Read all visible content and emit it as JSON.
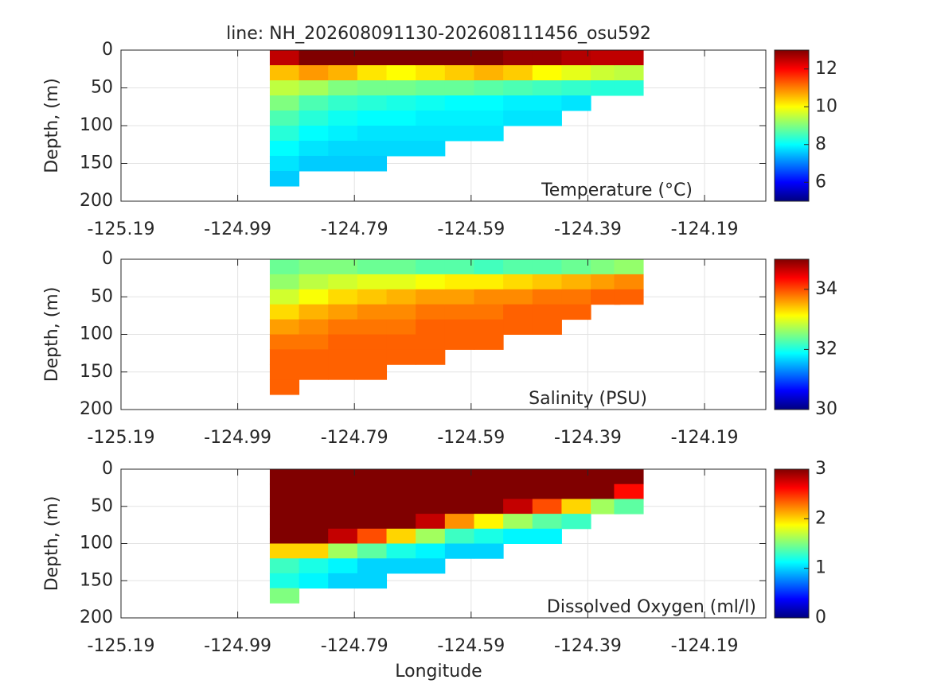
{
  "chart_data": [
    {
      "type": "section",
      "title": "line: NH_202608091130-202608111456_osu592",
      "label": "Temperature (°C)",
      "ylabel": "Depth, (m)",
      "x": [
        -124.91,
        -124.86,
        -124.81,
        -124.76,
        -124.71,
        -124.66,
        -124.61,
        -124.56,
        -124.51,
        -124.46,
        -124.41,
        -124.36,
        -124.32
      ],
      "depths": [
        0,
        20,
        40,
        60,
        80,
        100,
        120,
        140,
        160
      ],
      "values": [
        [
          12.5,
          10.5,
          9.5,
          9.0,
          8.6,
          8.3,
          8.0,
          7.8,
          7.6
        ],
        [
          13,
          10.8,
          9.3,
          8.6,
          8.3,
          8.0,
          7.8,
          7.6
        ],
        [
          13,
          10.6,
          9.0,
          8.4,
          8.1,
          7.9,
          7.7,
          7.6
        ],
        [
          13,
          10.2,
          8.9,
          8.3,
          8.0,
          7.8,
          7.7,
          7.6
        ],
        [
          13,
          10.0,
          8.9,
          8.2,
          8.0,
          7.8,
          7.7
        ],
        [
          13,
          10.2,
          8.8,
          8.1,
          7.9,
          7.8,
          7.7
        ],
        [
          13,
          10.4,
          8.8,
          8.0,
          7.9,
          7.8
        ],
        [
          13,
          10.6,
          8.7,
          8.0,
          7.9,
          7.8
        ],
        [
          12.8,
          10.4,
          8.6,
          7.9,
          7.8
        ],
        [
          12.8,
          10.0,
          8.5,
          7.9,
          7.8
        ],
        [
          12.6,
          9.8,
          8.4,
          7.8
        ],
        [
          12.5,
          9.6,
          8.3
        ],
        [
          12.5,
          9.5,
          8.3
        ]
      ],
      "xlim": [
        -125.19,
        -124.085
      ],
      "xticks": [
        -125.19,
        -124.99,
        -124.79,
        -124.59,
        -124.39,
        -124.19
      ],
      "ylim": [
        0,
        200
      ],
      "yticks": [
        0,
        50,
        100,
        150,
        200
      ],
      "yreverse": true,
      "grid": true,
      "colormap": "jet",
      "clim": [
        5,
        13
      ],
      "cticks": [
        6,
        8,
        10,
        12
      ]
    },
    {
      "type": "section",
      "label": "Salinity (PSU)",
      "ylabel": "Depth, (m)",
      "x": [
        -124.91,
        -124.86,
        -124.81,
        -124.76,
        -124.71,
        -124.66,
        -124.61,
        -124.56,
        -124.51,
        -124.46,
        -124.41,
        -124.36,
        -124.32
      ],
      "depths": [
        0,
        20,
        40,
        60,
        80,
        100,
        120,
        140,
        160
      ],
      "values": [
        [
          32.4,
          32.6,
          32.9,
          33.3,
          33.6,
          33.8,
          33.9,
          33.9,
          33.9
        ],
        [
          32.5,
          32.8,
          33.1,
          33.5,
          33.7,
          33.8,
          33.9,
          33.9
        ],
        [
          32.5,
          32.9,
          33.3,
          33.6,
          33.8,
          33.9,
          33.9,
          33.9
        ],
        [
          32.4,
          33.0,
          33.4,
          33.7,
          33.8,
          33.9,
          33.9,
          33.9
        ],
        [
          32.4,
          33.0,
          33.5,
          33.7,
          33.8,
          33.9,
          33.9
        ],
        [
          32.3,
          33.1,
          33.6,
          33.8,
          33.9,
          33.9,
          33.9
        ],
        [
          32.3,
          33.2,
          33.6,
          33.8,
          33.9,
          33.9
        ],
        [
          32.2,
          33.2,
          33.7,
          33.8,
          33.9,
          33.9
        ],
        [
          32.3,
          33.3,
          33.7,
          33.9,
          33.9
        ],
        [
          32.3,
          33.4,
          33.8,
          33.9,
          33.9
        ],
        [
          32.4,
          33.5,
          33.8,
          33.9
        ],
        [
          32.5,
          33.6,
          33.9
        ],
        [
          32.6,
          33.7,
          33.9
        ]
      ],
      "xlim": [
        -125.19,
        -124.085
      ],
      "xticks": [
        -125.19,
        -124.99,
        -124.79,
        -124.59,
        -124.39,
        -124.19
      ],
      "ylim": [
        0,
        200
      ],
      "yticks": [
        0,
        50,
        100,
        150,
        200
      ],
      "yreverse": true,
      "grid": true,
      "colormap": "jet",
      "clim": [
        30,
        35
      ],
      "cticks": [
        30,
        32,
        34
      ]
    },
    {
      "type": "section",
      "label": "Dissolved Oxygen (ml/l)",
      "ylabel": "Depth, (m)",
      "xlabel": "Longitude",
      "x": [
        -124.91,
        -124.86,
        -124.81,
        -124.76,
        -124.71,
        -124.66,
        -124.61,
        -124.56,
        -124.51,
        -124.46,
        -124.41,
        -124.36,
        -124.32
      ],
      "depths": [
        0,
        20,
        40,
        60,
        80,
        100,
        120,
        140,
        160
      ],
      "values": [
        [
          4.5,
          4.5,
          4.2,
          3.8,
          3.2,
          2.0,
          1.3,
          1.2,
          1.5
        ],
        [
          4.5,
          4.5,
          4.2,
          3.8,
          3.2,
          2.0,
          1.2,
          1.1
        ],
        [
          4.5,
          4.5,
          4.2,
          3.6,
          2.8,
          1.6,
          1.1,
          1.0
        ],
        [
          4.5,
          4.5,
          4.0,
          3.4,
          2.4,
          1.4,
          1.0,
          1.0
        ],
        [
          4.5,
          4.4,
          3.8,
          3.2,
          2.0,
          1.2,
          1.0
        ],
        [
          4.5,
          4.4,
          3.6,
          2.8,
          1.6,
          1.1,
          1.0
        ],
        [
          4.5,
          4.2,
          3.4,
          2.2,
          1.3,
          1.0
        ],
        [
          4.5,
          4.0,
          3.2,
          1.9,
          1.2,
          1.0
        ],
        [
          4.5,
          3.8,
          2.8,
          1.6,
          1.1
        ],
        [
          4.4,
          3.6,
          2.4,
          1.4,
          1.1
        ],
        [
          4.3,
          3.4,
          2.0,
          1.3
        ],
        [
          4.2,
          3.0,
          1.6
        ],
        [
          4.0,
          2.6,
          1.4
        ]
      ],
      "xlim": [
        -125.19,
        -124.085
      ],
      "xticks": [
        -125.19,
        -124.99,
        -124.79,
        -124.59,
        -124.39,
        -124.19
      ],
      "ylim": [
        0,
        200
      ],
      "yticks": [
        0,
        50,
        100,
        150,
        200
      ],
      "yreverse": true,
      "grid": true,
      "colormap": "jet",
      "clim": [
        0,
        3
      ],
      "cticks": [
        0,
        1,
        2,
        3
      ]
    }
  ]
}
